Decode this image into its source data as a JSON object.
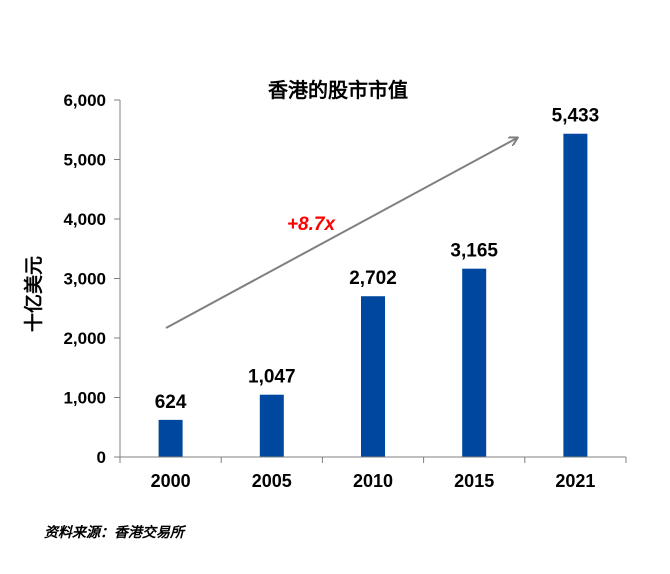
{
  "chart_data": {
    "type": "bar",
    "title": "香港的股市市值",
    "ylabel": "十亿美元",
    "xlabel": "",
    "categories": [
      "2000",
      "2005",
      "2010",
      "2015",
      "2021"
    ],
    "values": [
      624,
      1047,
      2702,
      3165,
      5433
    ],
    "value_labels": [
      "624",
      "1,047",
      "2,702",
      "3,165",
      "5,433"
    ],
    "ylim": [
      0,
      6000
    ],
    "yticks": [
      0,
      1000,
      2000,
      3000,
      4000,
      5000,
      6000
    ],
    "ytick_labels": [
      "0",
      "1,000",
      "2,000",
      "3,000",
      "4,000",
      "5,000",
      "6,000"
    ],
    "grid": false,
    "legend": "none",
    "annotation": {
      "text": "+8.7x",
      "color": "#ff0000"
    },
    "colors": {
      "bar": "#0047a0",
      "axis": "#808080",
      "arrow": "#808080"
    }
  },
  "source": "资料来源：香港交易所"
}
